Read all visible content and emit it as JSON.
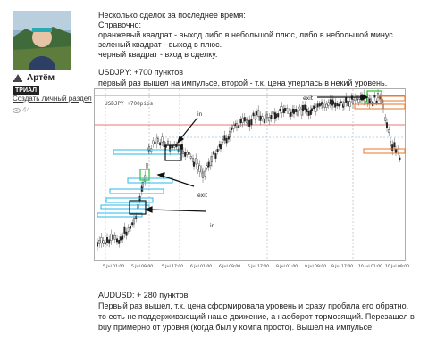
{
  "user": {
    "name": "Артём",
    "badge": "ТРИАЛ",
    "create_link": "Создать личный раздел",
    "views": "44"
  },
  "post": {
    "lines": [
      "Несколько сделок за последнее время:",
      "Справочно:",
      "оранжевый квадрат - выход либо в небольшой плюс, либо в небольшой минус.",
      "зеленый квадрат - выход в плюс.",
      "черный квадрат - вход в сделку.",
      "USDJPY: +700 пунктов",
      "первый раз вышел на импульсе, второй - т.к. цена уперлась в некий уровень."
    ]
  },
  "chart": {
    "label": "USDJPY +700pips",
    "annotations": [
      "in",
      "exit",
      "in",
      "exit"
    ],
    "x_labels": [
      "5 Jul 01:00",
      "5 Jul 09:00",
      "5 Jul 17:00",
      "6 Jul 01:00",
      "6 Jul 09:00",
      "6 Jul 17:00",
      "9 Jul 01:00",
      "9 Jul 09:00",
      "9 Jul 17:00",
      "10 Jul 01:00",
      "10 Jul 09:00"
    ]
  },
  "post2": {
    "title": "AUDUSD: + 280 пунктов",
    "lines": [
      "Первый раз вышел, т.к. цена сформировала уровень и сразу пробила его обратно,",
      "то есть не поддерживающий наше движение, а наоборот тормозящий. Перезашел в",
      "buy примерно от уровня (когда был у компа просто). Вышел на импульсе."
    ]
  }
}
